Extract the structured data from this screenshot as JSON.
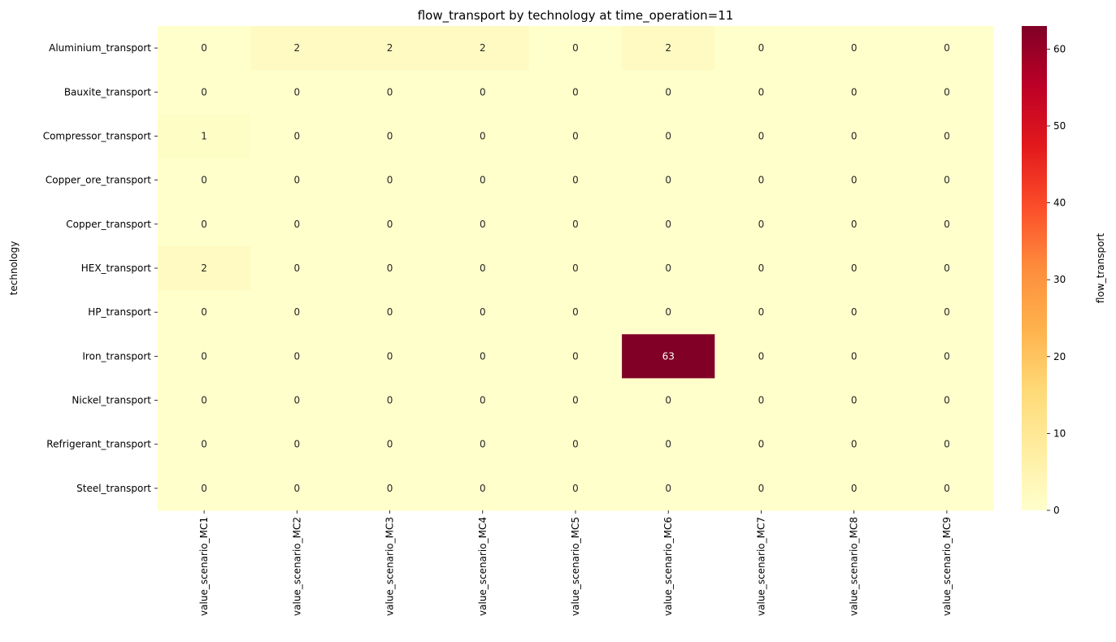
{
  "chart_data": {
    "type": "heatmap",
    "title": "flow_transport by technology at time_operation=11",
    "ylabel": "technology",
    "xlabel": "",
    "x_categories": [
      "value_scenario_MC1",
      "value_scenario_MC2",
      "value_scenario_MC3",
      "value_scenario_MC4",
      "value_scenario_MC5",
      "value_scenario_MC6",
      "value_scenario_MC7",
      "value_scenario_MC8",
      "value_scenario_MC9"
    ],
    "y_categories": [
      "Aluminium_transport",
      "Bauxite_transport",
      "Compressor_transport",
      "Copper_ore_transport",
      "Copper_transport",
      "HEX_transport",
      "HP_transport",
      "Iron_transport",
      "Nickel_transport",
      "Refrigerant_transport",
      "Steel_transport"
    ],
    "values": [
      [
        0,
        2,
        2,
        2,
        0,
        2,
        0,
        0,
        0
      ],
      [
        0,
        0,
        0,
        0,
        0,
        0,
        0,
        0,
        0
      ],
      [
        1,
        0,
        0,
        0,
        0,
        0,
        0,
        0,
        0
      ],
      [
        0,
        0,
        0,
        0,
        0,
        0,
        0,
        0,
        0
      ],
      [
        0,
        0,
        0,
        0,
        0,
        0,
        0,
        0,
        0
      ],
      [
        2,
        0,
        0,
        0,
        0,
        0,
        0,
        0,
        0
      ],
      [
        0,
        0,
        0,
        0,
        0,
        0,
        0,
        0,
        0
      ],
      [
        0,
        0,
        0,
        0,
        0,
        63,
        0,
        0,
        0
      ],
      [
        0,
        0,
        0,
        0,
        0,
        0,
        0,
        0,
        0
      ],
      [
        0,
        0,
        0,
        0,
        0,
        0,
        0,
        0,
        0
      ],
      [
        0,
        0,
        0,
        0,
        0,
        0,
        0,
        0,
        0
      ]
    ],
    "colorbar": {
      "label": "flow_transport",
      "range": [
        0,
        63
      ],
      "ticks": [
        0,
        10,
        20,
        30,
        40,
        50,
        60
      ],
      "colormap": "YlOrRd",
      "colors": [
        "#ffffcc",
        "#ffeda0",
        "#fed976",
        "#feb24c",
        "#fd8d3c",
        "#fc4e2a",
        "#e31a1c",
        "#bd0026",
        "#800026"
      ]
    }
  }
}
